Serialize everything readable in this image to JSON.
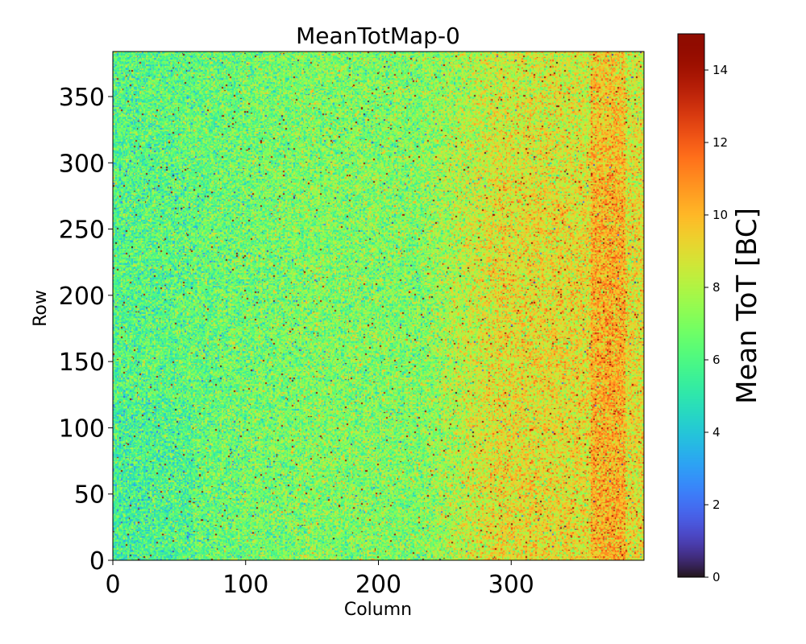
{
  "chart_data": {
    "type": "heatmap",
    "title": "MeanTotMap-0",
    "xlabel": "Column",
    "ylabel": "Row",
    "xlim": [
      0,
      400
    ],
    "ylim": [
      0,
      384
    ],
    "xticks": [
      0,
      100,
      200,
      300
    ],
    "xtick_labels": [
      "0",
      "100",
      "200",
      "300"
    ],
    "yticks": [
      0,
      50,
      100,
      150,
      200,
      250,
      300,
      350
    ],
    "ytick_labels": [
      "0",
      "50",
      "100",
      "150",
      "200",
      "250",
      "300",
      "350"
    ],
    "grid": {
      "columns": 400,
      "rows": 384
    },
    "colormap": "turbo",
    "colorbar": {
      "label": "Mean ToT [BC]",
      "range": [
        0,
        15
      ],
      "ticks": [
        0,
        2,
        4,
        6,
        8,
        10,
        12,
        14
      ],
      "tick_labels": [
        "0",
        "2",
        "4",
        "6",
        "8",
        "10",
        "12",
        "14"
      ]
    },
    "description_of_values": {
      "typical_mean": 7,
      "left_region_mean": 6,
      "right_region_mean_cols_250_400": 9,
      "hot_band_columns": [
        360,
        385
      ],
      "hot_band_mean": 10,
      "noise_std": 1.3,
      "outlier_max": 15
    }
  }
}
